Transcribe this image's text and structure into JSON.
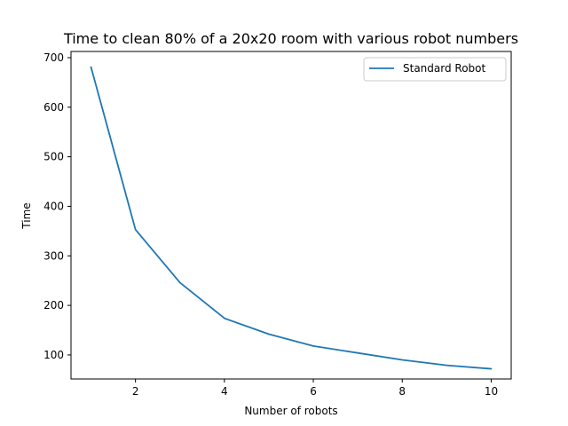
{
  "chart_data": {
    "type": "line",
    "title": "Time to clean 80% of a 20x20 room with various robot numbers",
    "xlabel": "Number of robots",
    "ylabel": "Time",
    "xlim": [
      0.55,
      10.45
    ],
    "ylim": [
      51.5,
      712.5
    ],
    "xticks": [
      2,
      4,
      6,
      8,
      10
    ],
    "yticks": [
      100,
      200,
      300,
      400,
      500,
      600,
      700
    ],
    "grid": false,
    "legend_position": "top-right",
    "series": [
      {
        "name": "Standard Robot",
        "color": "#1f77b4",
        "x": [
          1,
          2,
          3,
          4,
          5,
          6,
          7,
          8,
          9,
          10
        ],
        "y": [
          681,
          353,
          246,
          174,
          142,
          118,
          104,
          90,
          79,
          72
        ]
      }
    ]
  }
}
